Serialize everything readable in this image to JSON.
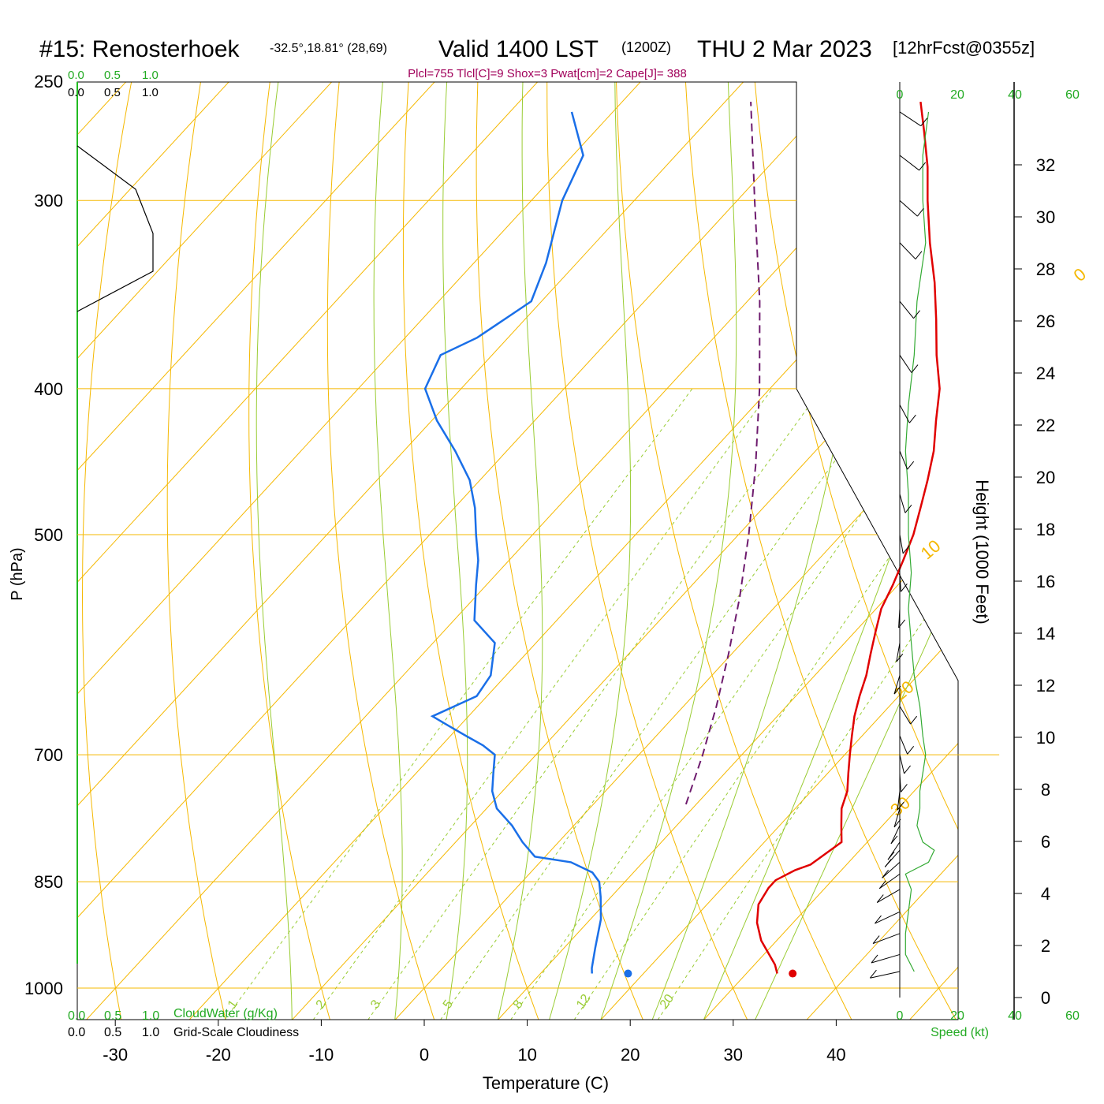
{
  "header": {
    "station": "#15: Renosterhoek",
    "coords": "-32.5°,18.81° (28,69)",
    "valid": "Valid 1400 LST",
    "utc": "(1200Z)",
    "date": "THU 2 Mar 2023",
    "forecast": "[12hrFcst@0355z]",
    "indices": "Plcl=755 Tlcl[C]=9 Shox=3 Pwat[cm]=2 Cape[J]= 388"
  },
  "colors": {
    "isotherm": "#f5b800",
    "dry_adiabat": "#f5b800",
    "moist_adiabat": "#99cc33",
    "mixing_ratio": "#99cc33",
    "temperature": "#e00000",
    "dewpoint": "#1a6fe8",
    "parcel": "#6e1b6e",
    "green_label": "#22aa22",
    "index_text": "#a0005a"
  },
  "chart_data": {
    "type": "skew-t log-p sounding",
    "xlabel": "Temperature (C)",
    "ylabel": "P (hPa)",
    "y2label": "Height (1000 Feet)",
    "x_ticks": [
      "-30",
      "-20",
      "-10",
      "0",
      "10",
      "20",
      "30",
      "40"
    ],
    "p_ticks": [
      "250",
      "300",
      "400",
      "500",
      "700",
      "850",
      "1000"
    ],
    "height_ticks": [
      "0",
      "2",
      "4",
      "6",
      "8",
      "10",
      "12",
      "14",
      "16",
      "18",
      "20",
      "22",
      "24",
      "26",
      "28",
      "30",
      "32"
    ],
    "isotherm_labels": [
      "10",
      "0",
      "-10",
      "-20",
      "-30"
    ],
    "dry_adiabat_labels": [
      "0",
      "10",
      "20",
      "30"
    ],
    "mixing_ratio_labels": [
      "1",
      "2",
      "3",
      "5",
      "8",
      "12",
      "20"
    ],
    "temperature": {
      "p": [
        978,
        965,
        930,
        905,
        880,
        858,
        848,
        835,
        828,
        800,
        780,
        760,
        740,
        720,
        700,
        680,
        660,
        640,
        620,
        600,
        580,
        560,
        540,
        520,
        500,
        480,
        460,
        440,
        420,
        400,
        380,
        360,
        340,
        320,
        300,
        285,
        270,
        258
      ],
      "t": [
        33.0,
        32.0,
        28.5,
        26.5,
        25.0,
        24.5,
        24.5,
        25.5,
        26.5,
        27.5,
        26.0,
        24.5,
        23.5,
        22.0,
        20.5,
        19.0,
        17.5,
        16.2,
        15.0,
        13.5,
        12.0,
        10.5,
        9.5,
        8.3,
        7.0,
        5.3,
        3.5,
        1.5,
        -1.0,
        -3.5,
        -6.8,
        -10.0,
        -13.5,
        -17.5,
        -21.5,
        -24.5,
        -28.0,
        -31.0
      ]
    },
    "dewpoint": {
      "p": [
        978,
        970,
        940,
        900,
        870,
        850,
        838,
        825,
        818,
        800,
        780,
        760,
        740,
        720,
        700,
        690,
        680,
        670,
        660,
        640,
        620,
        590,
        570,
        540,
        520,
        500,
        480,
        460,
        440,
        420,
        400,
        380,
        370,
        350,
        330,
        300,
        280,
        262
      ],
      "t": [
        15.0,
        14.5,
        13.0,
        11.0,
        9.0,
        7.5,
        6.0,
        3.0,
        -1.0,
        -3.5,
        -6.0,
        -9.0,
        -11.0,
        -12.5,
        -14.0,
        -16.0,
        -18.5,
        -21.0,
        -23.5,
        -21.0,
        -21.5,
        -24.0,
        -28.0,
        -31.0,
        -33.0,
        -35.5,
        -38.0,
        -41.0,
        -45.0,
        -49.5,
        -53.5,
        -55.0,
        -53.0,
        -51.0,
        -53.0,
        -57.0,
        -59.0,
        -64.0
      ]
    },
    "parcel": {
      "p": [
        755,
        700,
        650,
        600,
        550,
        500,
        450,
        400,
        350,
        300,
        258
      ],
      "t": [
        9.0,
        6.2,
        3.2,
        -0.3,
        -4.3,
        -9.0,
        -14.5,
        -21.0,
        -28.8,
        -38.3,
        -47.5
      ]
    },
    "surface_temperature": 34.5,
    "surface_dewpoint": 18.5,
    "surface_p": 978,
    "wind_speed_ticks": [
      "0",
      "20",
      "40",
      "60"
    ],
    "wind_speed_label": "Speed (kt)",
    "wind_speed_profile": {
      "p": [
        975,
        950,
        920,
        890,
        860,
        840,
        825,
        810,
        800,
        780,
        760,
        740,
        720,
        700,
        680,
        650,
        620,
        590,
        560,
        530,
        500,
        470,
        440,
        410,
        380,
        350,
        320,
        300,
        280,
        262
      ],
      "kt": [
        5,
        2,
        2,
        3,
        4,
        2,
        10,
        12,
        8,
        6,
        7,
        7,
        8,
        9,
        8,
        7,
        5,
        4,
        3,
        4,
        3,
        3,
        2,
        3,
        5,
        6,
        9,
        8,
        8,
        10
      ]
    },
    "cloud_water_label": "CloudWater (g/Kg)",
    "cloudiness_label": "Grid-Scale Cloudiness",
    "cloud_scale": [
      "0.0",
      "0.5",
      "1.0"
    ]
  }
}
